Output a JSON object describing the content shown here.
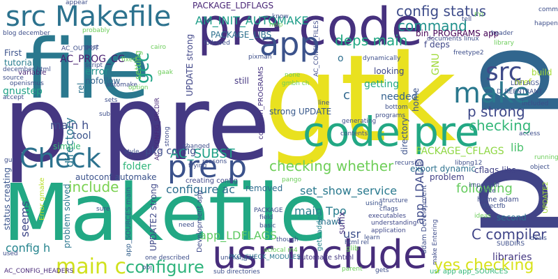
{
  "wordcloud": {
    "words": [
      {
        "text": "Makefile",
        "color": "#22a884",
        "vertical": false
      },
      {
        "text": "file",
        "color": "#2a788e",
        "vertical": false
      },
      {
        "text": "gtk",
        "color": "#e9e11f",
        "vertical": false
      },
      {
        "text": "p",
        "color": "#453781",
        "vertical": false
      },
      {
        "text": "pre",
        "color": "#443983",
        "vertical": false
      },
      {
        "text": "p",
        "color": "#31668e",
        "vertical": true
      },
      {
        "text": "p",
        "color": "#414487",
        "vertical": true
      },
      {
        "text": "pre code",
        "color": "#46317e",
        "vertical": false
      },
      {
        "text": "code pre",
        "color": "#22a884",
        "vertical": false
      },
      {
        "text": "usr include",
        "color": "#472d7b",
        "vertical": false
      },
      {
        "text": "src Makefile",
        "color": "#2c728e",
        "vertical": false
      },
      {
        "text": "Check",
        "color": "#2c728e",
        "vertical": false
      },
      {
        "text": "pre p",
        "color": "#3b528b",
        "vertical": false
      },
      {
        "text": "app",
        "color": "#3b528b",
        "vertical": false
      },
      {
        "text": "make",
        "color": "#2a788e",
        "vertical": false
      },
      {
        "text": "src",
        "color": "#3e4a89",
        "vertical": false
      },
      {
        "text": "main c",
        "color": "#d0e11c",
        "vertical": false
      },
      {
        "text": "configure",
        "color": "#2fb47c",
        "vertical": false
      },
      {
        "text": "yes checking",
        "color": "#d8e219",
        "vertical": false
      },
      {
        "text": "config status",
        "color": "#3e4c8a",
        "vertical": false
      },
      {
        "text": "command",
        "color": "#21918c",
        "vertical": false
      },
      {
        "text": "deps main",
        "color": "#22a884",
        "vertical": false
      },
      {
        "text": "checking whether",
        "color": "#6ece58",
        "vertical": false
      },
      {
        "text": "checking",
        "color": "#35b779",
        "vertical": false
      },
      {
        "text": "p strong",
        "color": "#3e4989",
        "vertical": false
      },
      {
        "text": "C compiler",
        "color": "#404588",
        "vertical": false
      },
      {
        "text": "include",
        "color": "#7ad151",
        "vertical": false
      },
      {
        "text": "gcc",
        "color": "#20a386",
        "vertical": true
      },
      {
        "text": "AC_SUBST",
        "color": "#1fa088",
        "vertical": false
      },
      {
        "text": "AM_INIT_AUTOMAKE",
        "color": "#1f9e89",
        "vertical": false
      },
      {
        "text": "PACKAGE_LDFLAGS",
        "color": "#482576",
        "vertical": false
      },
      {
        "text": "AC_PROG_CC",
        "color": "#482071",
        "vertical": false
      },
      {
        "text": "main h",
        "color": "#3d4e8a",
        "vertical": false
      },
      {
        "text": "directory",
        "color": "#2a778e",
        "vertical": true
      },
      {
        "text": "configure ac",
        "color": "#2e6e8e",
        "vertical": false
      },
      {
        "text": "set_show_service",
        "color": "#29798e",
        "vertical": false
      },
      {
        "text": "main Tpo",
        "color": "#287d8e",
        "vertical": false
      },
      {
        "text": "app_LDFLAGS",
        "color": "#5ec962",
        "vertical": false
      },
      {
        "text": "following",
        "color": "#65cb5e",
        "vertical": false
      },
      {
        "text": "libraries",
        "color": "#453882",
        "vertical": false
      },
      {
        "text": "config h",
        "color": "#25848e",
        "vertical": false
      },
      {
        "text": "getting",
        "color": "#22a884",
        "vertical": false
      },
      {
        "text": "needed",
        "color": "#34618d",
        "vertical": false
      },
      {
        "text": "seems",
        "color": "#3f4889",
        "vertical": true
      },
      {
        "text": "lib",
        "color": "#4ac16d",
        "vertical": false
      },
      {
        "text": "PACKAGE_CFLAGS",
        "color": "#8fd744",
        "vertical": false
      },
      {
        "text": "app_LDADD",
        "color": "#3e4a89",
        "vertical": true
      },
      {
        "text": "usr",
        "color": "#3c4f8a",
        "vertical": false
      },
      {
        "text": "c",
        "color": "#31688e",
        "vertical": false
      },
      {
        "text": "o",
        "color": "#2e6f8e",
        "vertical": false
      },
      {
        "text": "href",
        "color": "#b5de2b",
        "vertical": false
      },
      {
        "text": "build",
        "color": "#a5db36",
        "vertical": false
      },
      {
        "text": "GNU",
        "color": "#a0da39",
        "vertical": true
      },
      {
        "text": "gnustep",
        "color": "#1fa287",
        "vertical": false
      },
      {
        "text": "folder",
        "color": "#31b57b",
        "vertical": false
      },
      {
        "text": "tool",
        "color": "#3a548c",
        "vertical": false
      },
      {
        "text": "simple",
        "color": "#3aba76",
        "vertical": false
      },
      {
        "text": "pkg config",
        "color": "#3d4d8a",
        "vertical": false
      },
      {
        "text": "error",
        "color": "#21918c",
        "vertical": false
      },
      {
        "text": "nofollow",
        "color": "#33638d",
        "vertical": false
      },
      {
        "text": "rel",
        "color": "#2c728e",
        "vertical": true
      },
      {
        "text": "looking",
        "color": "#3f4788",
        "vertical": false
      },
      {
        "text": "First",
        "color": "#3b528b",
        "vertical": false
      },
      {
        "text": "tutorial",
        "color": "#287c8e",
        "vertical": false
      },
      {
        "text": "variable",
        "color": "#482475",
        "vertical": false
      },
      {
        "text": "setting",
        "color": "#6ccd5a",
        "vertical": true
      },
      {
        "text": "removed",
        "color": "#2e6d8e",
        "vertical": false
      },
      {
        "text": "problem",
        "color": "#423f85",
        "vertical": false
      },
      {
        "text": "second",
        "color": "#2d708e",
        "vertical": false
      },
      {
        "text": "problem solved",
        "color": "#2a768e",
        "vertical": true
      },
      {
        "text": "mawk",
        "color": "#2c738e",
        "vertical": false
      },
      {
        "text": "suffix",
        "color": "#46327e",
        "vertical": true
      },
      {
        "text": "export dynamic",
        "color": "#2d718e",
        "vertical": false
      },
      {
        "text": "cflags libs",
        "color": "#414287",
        "vertical": false
      },
      {
        "text": "bin_PROGRAMS app",
        "color": "#440154",
        "vertical": false
      },
      {
        "text": "strong UPDATE",
        "color": "#38598c",
        "vertical": false
      },
      {
        "text": "still",
        "color": "#453781",
        "vertical": false
      },
      {
        "text": "UPDATE strong",
        "color": "#404688",
        "vertical": true
      },
      {
        "text": "PACKAGE_LIBS",
        "color": "#2d708e",
        "vertical": false
      },
      {
        "text": "autoconf automake",
        "color": "#3b528b",
        "vertical": false
      },
      {
        "text": "creating config",
        "color": "#3f4889",
        "vertical": false
      },
      {
        "text": "UPDATE2 strong",
        "color": "#3f4889",
        "vertical": true
      },
      {
        "text": "status creating",
        "color": "#39558c",
        "vertical": true
      },
      {
        "text": "Development app",
        "color": "#3e4a89",
        "vertical": true
      },
      {
        "text": "adam Development",
        "color": "#3d4d8a",
        "vertical": true
      },
      {
        "text": "home adam",
        "color": "#3e4c8a",
        "vertical": false
      },
      {
        "text": "gets added",
        "color": "#25858e",
        "vertical": true
      },
      {
        "text": "code bin_PROGRAMS",
        "color": "#463480",
        "vertical": true
      },
      {
        "text": "UPDATE2",
        "color": "#a2da37",
        "vertical": true
      },
      {
        "text": "f deps",
        "color": "#3f4788",
        "vertical": false
      },
      {
        "text": "Error gmake",
        "color": "#b8de29",
        "vertical": true
      },
      {
        "text": "app_SOURCES main",
        "color": "#34618d",
        "vertical": true
      },
      {
        "text": "usr app app_SOURCES",
        "color": "#35b779",
        "vertical": false
      },
      {
        "text": "automake shtml",
        "color": "#453882",
        "vertical": false
      },
      {
        "text": "PKG_CHECK_MODULES",
        "color": "#2a788e",
        "vertical": false
      },
      {
        "text": "AC_CONFIG_HEADERS",
        "color": "#482878",
        "vertical": false
      },
      {
        "text": "AC_CONFIG_SRCDIR",
        "color": "#482878",
        "vertical": true
      },
      {
        "text": "AC_CONFIG_FILES",
        "color": "#3e4c8a",
        "vertical": true
      },
      {
        "text": "strong",
        "color": "#3e4a89",
        "vertical": true
      },
      {
        "text": "make Entering",
        "color": "#3e4c8a",
        "vertical": true
      },
      {
        "text": "home",
        "color": "#3b528b",
        "vertical": true
      },
      {
        "text": "directory",
        "color": "#3b528b",
        "vertical": true
      },
      {
        "text": "executables",
        "color": "#3f4889",
        "vertical": false
      },
      {
        "text": "understanding",
        "color": "#3f4889",
        "vertical": false
      },
      {
        "text": "application",
        "color": "#3f4889",
        "vertical": false
      },
      {
        "text": "using",
        "color": "#3b528b",
        "vertical": false
      },
      {
        "text": "glib",
        "color": "#6ccd5a",
        "vertical": false
      },
      {
        "text": "PACKAGE",
        "color": "#3d4e8a",
        "vertical": false
      },
      {
        "text": "field",
        "color": "#3d4e8a",
        "vertical": false
      },
      {
        "text": "basic",
        "color": "#3d4e8a",
        "vertical": false
      },
      {
        "text": "though",
        "color": "#3d4e8a",
        "vertical": false
      },
      {
        "text": "unchanged",
        "color": "#3d4e8a",
        "vertical": false
      },
      {
        "text": "one described",
        "color": "#3d4e8a",
        "vertical": false
      },
      {
        "text": "sub directories",
        "color": "#3d4e8a",
        "vertical": false
      },
      {
        "text": "aclocal m4",
        "color": "#6ccd5a",
        "vertical": false
      },
      {
        "text": "html rel",
        "color": "#3d4e8a",
        "vertical": false
      },
      {
        "text": "learn",
        "color": "#3d4e8a",
        "vertical": false
      },
      {
        "text": "SUBDIRS",
        "color": "#3d4e8a",
        "vertical": false
      },
      {
        "text": "structure",
        "color": "#3d4e8a",
        "vertical": false
      },
      {
        "text": "cflags",
        "color": "#3d4e8a",
        "vertical": false
      },
      {
        "text": "reasons",
        "color": "#3d4e8a",
        "vertical": false
      },
      {
        "text": "pango",
        "color": "#6ccd5a",
        "vertical": false
      },
      {
        "text": "trying",
        "color": "#3d4e8a",
        "vertical": false
      },
      {
        "text": "changed",
        "color": "#3d4e8a",
        "vertical": false
      },
      {
        "text": "style",
        "color": "#3d4e8a",
        "vertical": false
      },
      {
        "text": "sure",
        "color": "#3d4e8a",
        "vertical": false
      },
      {
        "text": "need",
        "color": "#3d4e8a",
        "vertical": false
      },
      {
        "text": "obj",
        "color": "#3d4e8a",
        "vertical": false
      },
      {
        "text": "parent",
        "color": "#6ccd5a",
        "vertical": false
      },
      {
        "text": "gets",
        "color": "#3d4e8a",
        "vertical": false
      },
      {
        "text": "libpng12",
        "color": "#3d4e8a",
        "vertical": false
      },
      {
        "text": "recursive",
        "color": "#3d4e8a",
        "vertical": false
      },
      {
        "text": "contents",
        "color": "#3d4e8a",
        "vertical": false
      },
      {
        "text": "generating",
        "color": "#3d4e8a",
        "vertical": false
      },
      {
        "text": "programs",
        "color": "#3d4e8a",
        "vertical": false
      },
      {
        "text": "bottom",
        "color": "#3d4e8a",
        "vertical": false
      },
      {
        "text": "line",
        "color": "#3d4e8a",
        "vertical": false
      },
      {
        "text": "gmbh ch",
        "color": "#6ccd5a",
        "vertical": false
      },
      {
        "text": "none",
        "color": "#6ccd5a",
        "vertical": false
      },
      {
        "text": "dynamically",
        "color": "#3d4e8a",
        "vertical": false
      },
      {
        "text": "know",
        "color": "#3d4e8a",
        "vertical": false
      },
      {
        "text": "help",
        "color": "#6ccd5a",
        "vertical": false
      },
      {
        "text": "gaak",
        "color": "#6ccd5a",
        "vertical": false
      },
      {
        "text": "cairo",
        "color": "#6ccd5a",
        "vertical": false
      },
      {
        "text": "probably",
        "color": "#6ccd5a",
        "vertical": false
      },
      {
        "text": "appear",
        "color": "#3d4e8a",
        "vertical": false
      },
      {
        "text": "blog december",
        "color": "#3d4e8a",
        "vertical": false
      },
      {
        "text": "source",
        "color": "#3d4e8a",
        "vertical": false
      },
      {
        "text": "openismus",
        "color": "#3d4e8a",
        "vertical": false
      },
      {
        "text": "december html",
        "color": "#3d4e8a",
        "vertical": false
      },
      {
        "text": "accept",
        "color": "#3d4e8a",
        "vertical": false
      },
      {
        "text": "AC_OUTPUT",
        "color": "#3d4e8a",
        "vertical": false
      },
      {
        "text": "script",
        "color": "#3d4e8a",
        "vertical": false
      },
      {
        "text": "post",
        "color": "#3d4e8a",
        "vertical": false
      },
      {
        "text": "automake",
        "color": "#3d4e8a",
        "vertical": false
      },
      {
        "text": "option",
        "color": "#6ccd5a",
        "vertical": false
      },
      {
        "text": "pixman",
        "color": "#3d4e8a",
        "vertical": false
      },
      {
        "text": "followed",
        "color": "#3d4e8a",
        "vertical": false
      },
      {
        "text": "header",
        "color": "#3d4e8a",
        "vertical": false
      },
      {
        "text": "library",
        "color": "#6ccd5a",
        "vertical": false
      },
      {
        "text": "freetype2",
        "color": "#3d4e8a",
        "vertical": false
      },
      {
        "text": "LDFLAGS",
        "color": "#3d4e8a",
        "vertical": false
      },
      {
        "text": "D_REENTRANT",
        "color": "#3d4e8a",
        "vertical": false
      },
      {
        "text": "included",
        "color": "#3d4e8a",
        "vertical": false
      },
      {
        "text": "access",
        "color": "#3d4e8a",
        "vertical": false
      },
      {
        "text": "object",
        "color": "#3d4e8a",
        "vertical": false
      },
      {
        "text": "running",
        "color": "#6ccd5a",
        "vertical": false
      },
      {
        "text": "happens",
        "color": "#3d4e8a",
        "vertical": false
      },
      {
        "text": "comma",
        "color": "#3d4e8a",
        "vertical": false
      },
      {
        "text": "FYI",
        "color": "#6ccd5a",
        "vertical": false
      },
      {
        "text": "tell",
        "color": "#3d4e8a",
        "vertical": false
      },
      {
        "text": "documents linux",
        "color": "#3d4e8a",
        "vertical": false
      },
      {
        "text": "important",
        "color": "#3d4e8a",
        "vertical": false
      },
      {
        "text": "write",
        "color": "#3d4e8a",
        "vertical": false
      },
      {
        "text": "ideas",
        "color": "#6ccd5a",
        "vertical": false
      },
      {
        "text": "directfb",
        "color": "#3d4e8a",
        "vertical": false
      },
      {
        "text": "deals",
        "color": "#3d4e8a",
        "vertical": false
      },
      {
        "text": "used",
        "color": "#3d4e8a",
        "vertical": false
      },
      {
        "text": "gui",
        "color": "#3d4e8a",
        "vertical": false
      },
      {
        "text": "sets",
        "color": "#3d4e8a",
        "vertical": false
      },
      {
        "text": "sub",
        "color": "#3d4e8a",
        "vertical": false
      },
      {
        "text": "fixed",
        "color": "#6ccd5a",
        "vertical": false
      }
    ]
  }
}
